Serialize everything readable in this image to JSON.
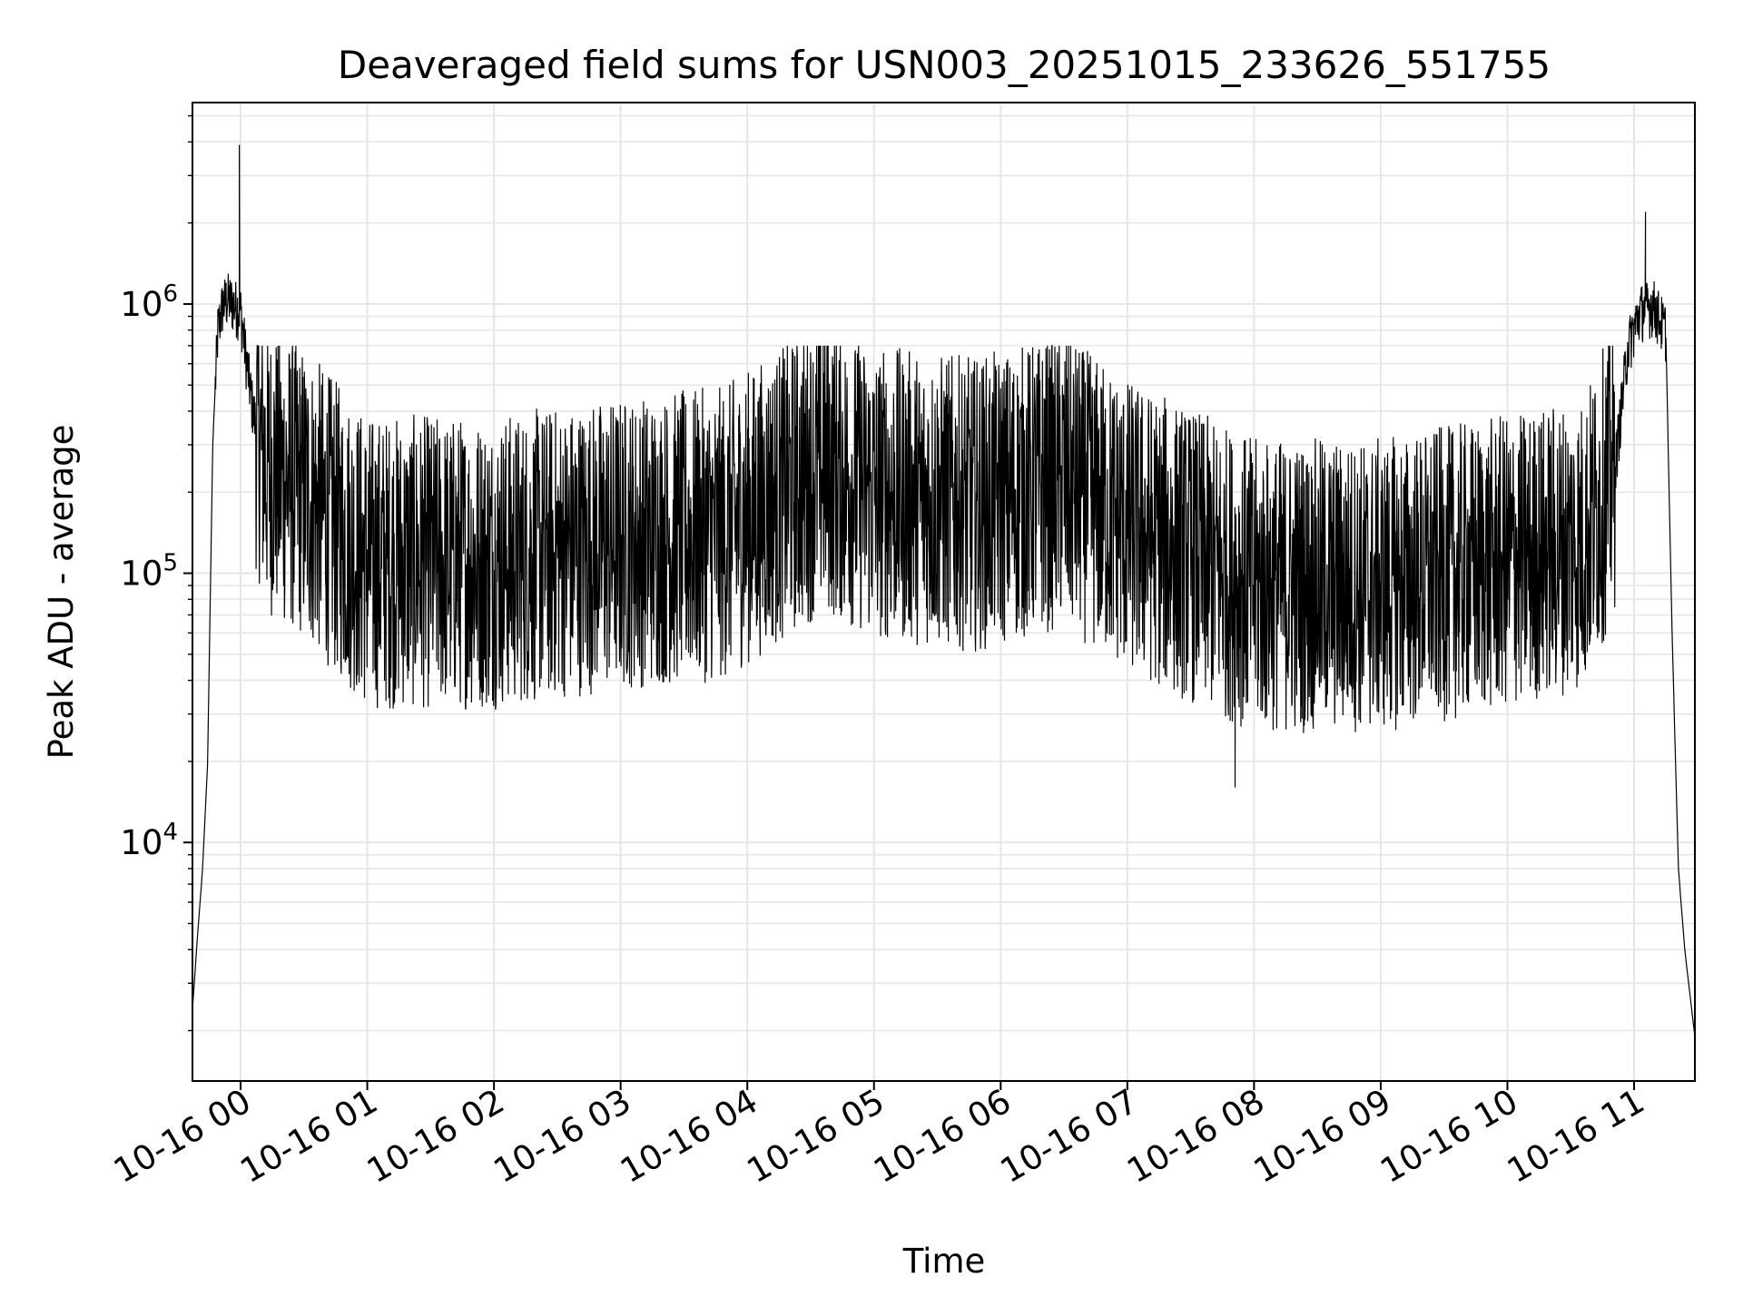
{
  "chart_data": {
    "type": "line",
    "title": "Deaveraged field sums for USN003_20251015_233626_551755",
    "xlabel": "Time",
    "ylabel": "Peak ADU - average",
    "yscale": "log",
    "ylim": [
      1300,
      5600000
    ],
    "xlim_hours": [
      -0.38,
      11.48
    ],
    "x_tick_labels": [
      "10-16 00",
      "10-16 01",
      "10-16 02",
      "10-16 03",
      "10-16 04",
      "10-16 05",
      "10-16 06",
      "10-16 07",
      "10-16 08",
      "10-16 09",
      "10-16 10",
      "10-16 11"
    ],
    "x_tick_hours": [
      0,
      1,
      2,
      3,
      4,
      5,
      6,
      7,
      8,
      9,
      10,
      11
    ],
    "y_tick_labels": [
      {
        "base": "10",
        "exp": "4",
        "value": 10000
      },
      {
        "base": "10",
        "exp": "5",
        "value": 100000
      },
      {
        "base": "10",
        "exp": "6",
        "value": 1000000
      }
    ],
    "grid": true,
    "line_color": "#000000",
    "grid_color": "#e6e6e6",
    "series": [
      {
        "name": "Peak ADU - average",
        "envelope": {
          "x_hours": [
            -0.38,
            -0.34,
            -0.3,
            -0.26,
            -0.22,
            -0.18,
            -0.14,
            -0.1,
            -0.05,
            0.0,
            0.05,
            0.1,
            0.2,
            0.5,
            1.0,
            2.0,
            3.0,
            3.8,
            4.6,
            5.0,
            5.8,
            6.5,
            7.0,
            8.0,
            9.0,
            10.0,
            10.6,
            10.85,
            10.95,
            11.05,
            11.15,
            11.25,
            11.3,
            11.35,
            11.4,
            11.45,
            11.48
          ],
          "median": [
            2400,
            4500,
            8000,
            20000,
            300000,
            800000,
            1000000,
            1050000,
            1000000,
            950000,
            600000,
            400000,
            250000,
            200000,
            110000,
            110000,
            130000,
            140000,
            250000,
            200000,
            180000,
            220000,
            150000,
            90000,
            90000,
            110000,
            130000,
            250000,
            700000,
            950000,
            1000000,
            800000,
            60000,
            8000,
            4000,
            2500,
            1900
          ]
        },
        "spikes": [
          {
            "x_hours": -0.01,
            "y": 3900000
          },
          {
            "x_hours": 11.09,
            "y": 2200000
          },
          {
            "x_hours": 4.6,
            "y": 700000
          },
          {
            "x_hours": 7.85,
            "y": 16000
          }
        ],
        "noise_range": {
          "low": 17000,
          "high": 700000
        }
      }
    ]
  }
}
